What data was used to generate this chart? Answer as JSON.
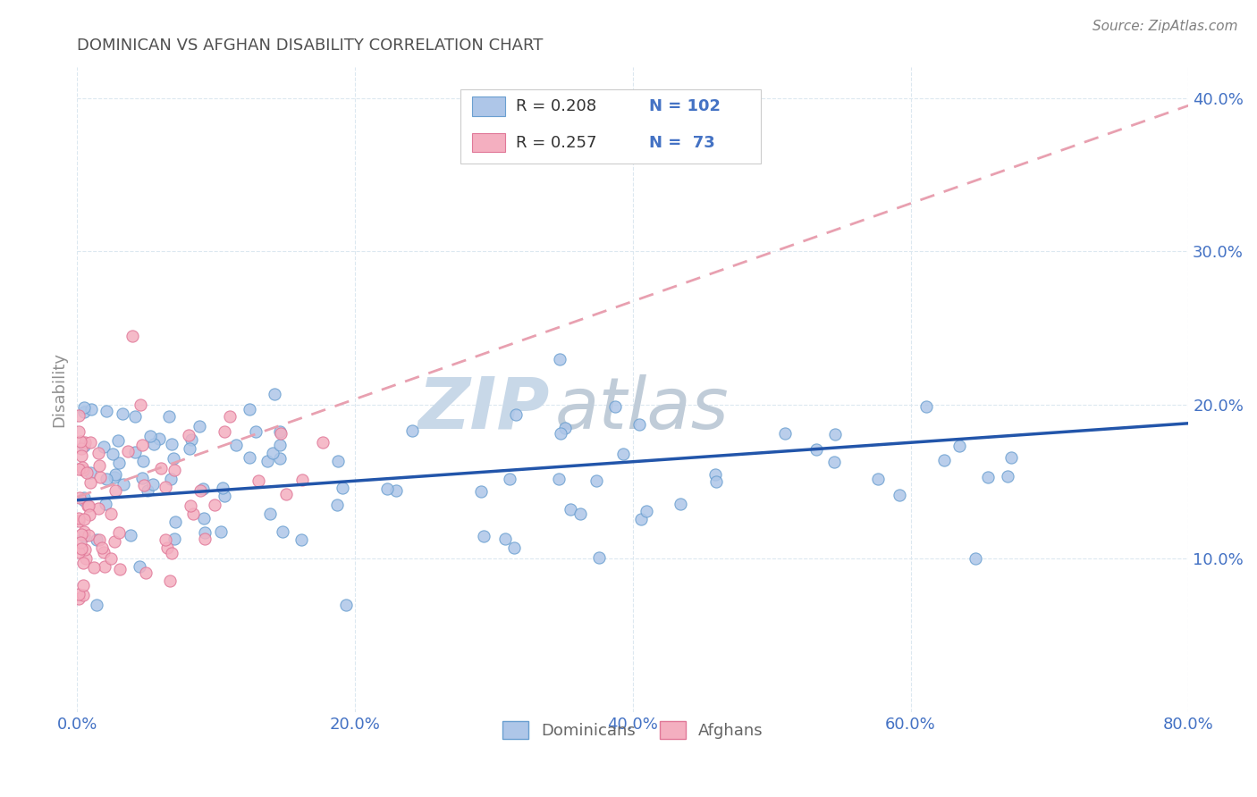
{
  "title": "DOMINICAN VS AFGHAN DISABILITY CORRELATION CHART",
  "source": "Source: ZipAtlas.com",
  "ylabel": "Disability",
  "xlim": [
    0.0,
    0.8
  ],
  "ylim": [
    0.0,
    0.42
  ],
  "xtick_labels": [
    "0.0%",
    "20.0%",
    "40.0%",
    "60.0%",
    "80.0%"
  ],
  "xtick_vals": [
    0.0,
    0.2,
    0.4,
    0.6,
    0.8
  ],
  "ytick_labels": [
    "10.0%",
    "20.0%",
    "30.0%",
    "40.0%"
  ],
  "ytick_vals": [
    0.1,
    0.2,
    0.3,
    0.4
  ],
  "dominican_color": "#aec6e8",
  "afghan_color": "#f4afc0",
  "dominican_edge": "#6a9fd0",
  "afghan_edge": "#e07898",
  "trendline_dominican_color": "#2255aa",
  "trendline_afghan_color": "#e8a0b0",
  "legend_R_dominican": "0.208",
  "legend_N_dominican": "102",
  "legend_R_afghan": "0.257",
  "legend_N_afghan": " 73",
  "watermark_zip_color": "#c8d8e8",
  "watermark_atlas_color": "#c0ccd8",
  "background_color": "#ffffff",
  "grid_color": "#dce8f0",
  "title_color": "#505050",
  "source_color": "#808080",
  "axis_label_color": "#909090",
  "tick_color": "#4472c4",
  "legend_num_color": "#4472c4",
  "legend_text_color": "#333333",
  "dom_trendline_y0": 0.138,
  "dom_trendline_y1": 0.188,
  "afg_trendline_y0": 0.14,
  "afg_trendline_y1": 0.395
}
